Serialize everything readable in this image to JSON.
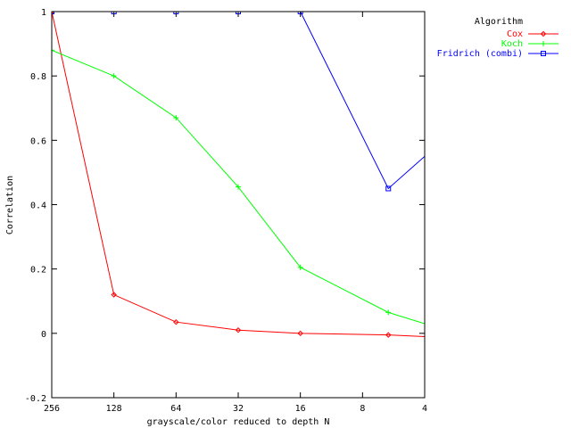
{
  "chart_data": {
    "type": "line",
    "title": "",
    "xlabel": "grayscale/color reduced to depth N",
    "ylabel": "Correlation",
    "x_scale": "log2-reversed",
    "x_ticks": [
      256,
      128,
      64,
      32,
      16,
      8,
      4
    ],
    "x_tick_labels": [
      "256",
      "128",
      "64",
      "32",
      "16",
      "8",
      "4"
    ],
    "xlim": [
      256,
      4
    ],
    "ylim": [
      -0.2,
      1
    ],
    "y_ticks": [
      -0.2,
      0,
      0.2,
      0.4,
      0.6,
      0.8,
      1
    ],
    "y_tick_labels": [
      "-0.2",
      "0",
      "0.2",
      "0.4",
      "0.6",
      "0.8",
      "1"
    ],
    "grid": false,
    "legend": {
      "title": "Algorithm",
      "placement": "top-right, outside plot"
    },
    "series": [
      {
        "name": "Cox",
        "color": "#ff0000",
        "marker": "diamond",
        "x": [
          256,
          128,
          64,
          32,
          16,
          6,
          4
        ],
        "y": [
          1,
          0.12,
          0.035,
          0.01,
          0,
          -0.005,
          -0.01
        ]
      },
      {
        "name": "Koch",
        "color": "#00ff00",
        "marker": "plus",
        "x": [
          256,
          128,
          64,
          32,
          16,
          6,
          4
        ],
        "y": [
          0.88,
          0.8,
          0.67,
          0.455,
          0.205,
          0.065,
          0.03
        ]
      },
      {
        "name": "Fridrich (combi)",
        "color": "#0000ff",
        "marker": "square",
        "x": [
          256,
          128,
          64,
          32,
          16,
          6,
          4
        ],
        "y": [
          1,
          1,
          1,
          1,
          1,
          0.45,
          0.55
        ]
      }
    ]
  }
}
